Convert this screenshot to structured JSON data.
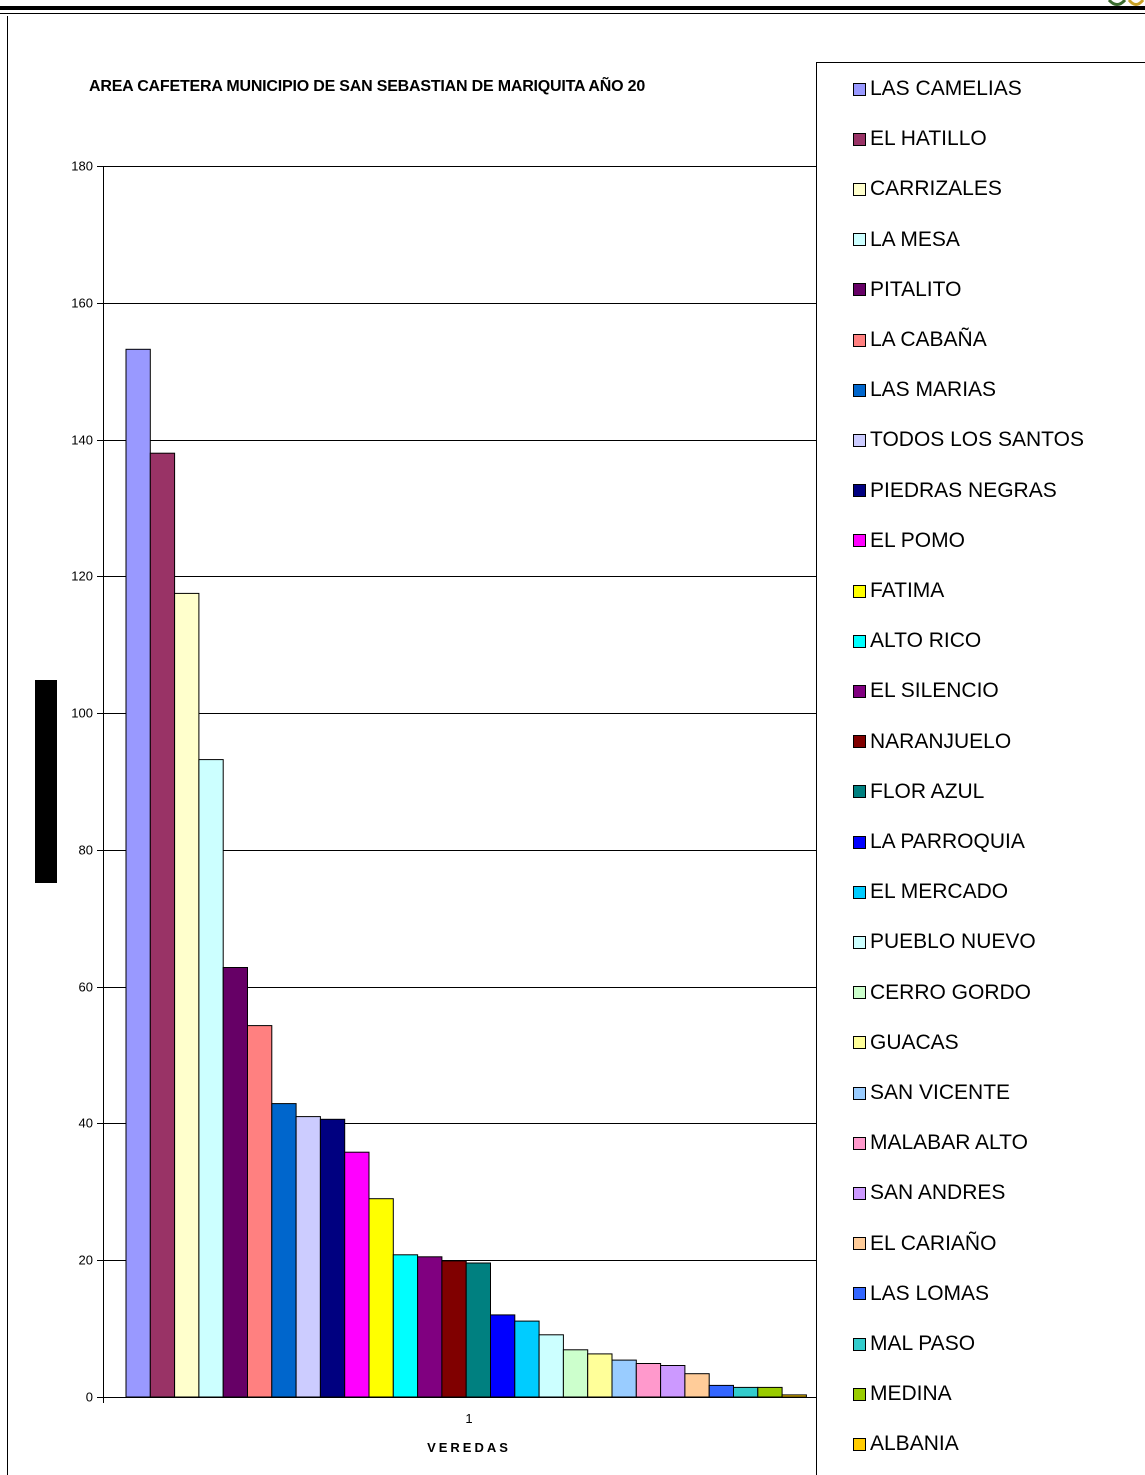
{
  "chart_data": {
    "type": "bar",
    "title": "AREA CAFETERA MUNICIPIO DE SAN SEBASTIAN DE MARIQUITA AÑO 20",
    "xlabel": "VEREDAS",
    "ylabel": "",
    "categories": [
      "1"
    ],
    "ylim": [
      0,
      180
    ],
    "yticks": [
      0,
      20,
      40,
      60,
      80,
      100,
      120,
      140,
      160,
      180
    ],
    "grid": true,
    "legend_position": "right",
    "series": [
      {
        "name": "LAS CAMELIAS",
        "values": [
          153.2
        ],
        "color": "#9999FF"
      },
      {
        "name": "EL HATILLO",
        "values": [
          138.0
        ],
        "color": "#993366"
      },
      {
        "name": "CARRIZALES",
        "values": [
          117.5
        ],
        "color": "#FFFFCC"
      },
      {
        "name": "LA MESA",
        "values": [
          93.2
        ],
        "color": "#CCFFFF"
      },
      {
        "name": "PITALITO",
        "values": [
          62.8
        ],
        "color": "#660066"
      },
      {
        "name": "LA CABAÑA",
        "values": [
          54.3
        ],
        "color": "#FF8080"
      },
      {
        "name": "LAS MARIAS",
        "values": [
          42.9
        ],
        "color": "#0066CC"
      },
      {
        "name": "TODOS LOS SANTOS",
        "values": [
          41.0
        ],
        "color": "#CCCCFF"
      },
      {
        "name": "PIEDRAS NEGRAS",
        "values": [
          40.6
        ],
        "color": "#000080"
      },
      {
        "name": "EL POMO",
        "values": [
          35.8
        ],
        "color": "#FF00FF"
      },
      {
        "name": "FATIMA",
        "values": [
          29.0
        ],
        "color": "#FFFF00"
      },
      {
        "name": "ALTO RICO",
        "values": [
          20.8
        ],
        "color": "#00FFFF"
      },
      {
        "name": "EL SILENCIO",
        "values": [
          20.5
        ],
        "color": "#800080"
      },
      {
        "name": "NARANJUELO",
        "values": [
          19.9
        ],
        "color": "#800000"
      },
      {
        "name": "FLOR AZUL",
        "values": [
          19.6
        ],
        "color": "#008080"
      },
      {
        "name": "LA PARROQUIA",
        "values": [
          12.0
        ],
        "color": "#0000FF"
      },
      {
        "name": "EL MERCADO",
        "values": [
          11.1
        ],
        "color": "#00CCFF"
      },
      {
        "name": "PUEBLO NUEVO",
        "values": [
          9.1
        ],
        "color": "#CCFFFF"
      },
      {
        "name": "CERRO GORDO",
        "values": [
          6.9
        ],
        "color": "#CCFFCC"
      },
      {
        "name": "GUACAS",
        "values": [
          6.3
        ],
        "color": "#FFFF99"
      },
      {
        "name": "SAN VICENTE",
        "values": [
          5.4
        ],
        "color": "#99CCFF"
      },
      {
        "name": "MALABAR ALTO",
        "values": [
          4.9
        ],
        "color": "#FF99CC"
      },
      {
        "name": "SAN ANDRES",
        "values": [
          4.6
        ],
        "color": "#CC99FF"
      },
      {
        "name": "EL CARIAÑO",
        "values": [
          3.4
        ],
        "color": "#FFCC99"
      },
      {
        "name": "LAS LOMAS",
        "values": [
          1.7
        ],
        "color": "#3366FF"
      },
      {
        "name": "MAL PASO",
        "values": [
          1.4
        ],
        "color": "#33CCCC"
      },
      {
        "name": "MEDINA",
        "values": [
          1.4
        ],
        "color": "#99CC00"
      },
      {
        "name": "ALBANIA",
        "values": [
          0.3
        ],
        "color": "#FFCC00"
      }
    ]
  }
}
